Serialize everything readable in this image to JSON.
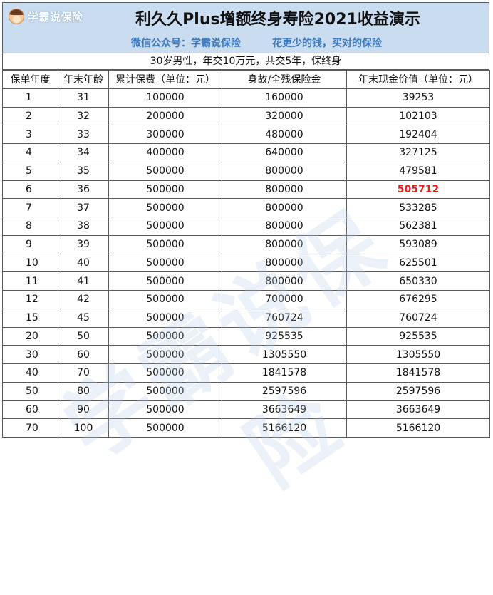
{
  "brand": {
    "name": "学霸说保险",
    "avatar_icon": "girl-avatar-icon"
  },
  "header": {
    "title": "利久久Plus增额终身寿险2021收益演示",
    "subtitle_left": "微信公众号：学霸说保险",
    "subtitle_right": "花更少的钱，买对的保险",
    "background_color": "#c9dcf0",
    "subtitle_color": "#3a78c0"
  },
  "case_description": "30岁男性，年交10万元，共交5年，保终身",
  "table": {
    "headers": [
      "保单年度",
      "年末年龄",
      "累计保费（单位：元）",
      "身故/全残保险金",
      "年末现金价值（单位：元）"
    ],
    "rows": [
      [
        "1",
        "31",
        "100000",
        "160000",
        "39253"
      ],
      [
        "2",
        "32",
        "200000",
        "320000",
        "102103"
      ],
      [
        "3",
        "33",
        "300000",
        "480000",
        "192404"
      ],
      [
        "4",
        "34",
        "400000",
        "640000",
        "327125"
      ],
      [
        "5",
        "35",
        "500000",
        "800000",
        "479581"
      ],
      [
        "6",
        "36",
        "500000",
        "800000",
        "505712"
      ],
      [
        "7",
        "37",
        "500000",
        "800000",
        "533285"
      ],
      [
        "8",
        "38",
        "500000",
        "800000",
        "562381"
      ],
      [
        "9",
        "39",
        "500000",
        "800000",
        "593089"
      ],
      [
        "10",
        "40",
        "500000",
        "800000",
        "625501"
      ],
      [
        "11",
        "41",
        "500000",
        "800000",
        "650330"
      ],
      [
        "12",
        "42",
        "500000",
        "700000",
        "676295"
      ],
      [
        "15",
        "45",
        "500000",
        "760724",
        "760724"
      ],
      [
        "20",
        "50",
        "500000",
        "925535",
        "925535"
      ],
      [
        "30",
        "60",
        "500000",
        "1305550",
        "1305550"
      ],
      [
        "40",
        "70",
        "500000",
        "1841578",
        "1841578"
      ],
      [
        "50",
        "80",
        "500000",
        "2597596",
        "2597596"
      ],
      [
        "60",
        "90",
        "500000",
        "3663649",
        "3663649"
      ],
      [
        "70",
        "100",
        "500000",
        "5166120",
        "5166120"
      ]
    ],
    "highlighted_row_index": 5,
    "highlight_color": "#e3211c"
  },
  "watermark": "学霸说保险"
}
